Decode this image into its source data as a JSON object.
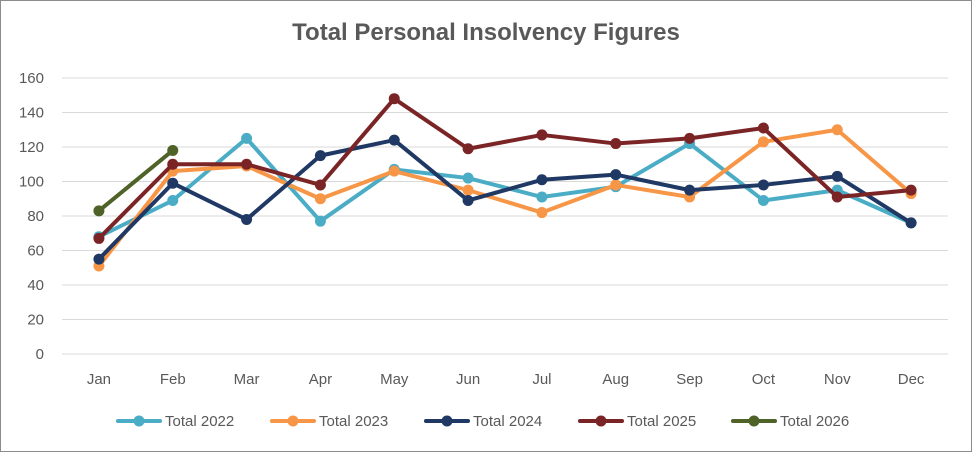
{
  "chart_data": {
    "type": "line",
    "title": "Total Personal Insolvency Figures",
    "xlabel": "",
    "ylabel": "",
    "categories": [
      "Jan",
      "Feb",
      "Mar",
      "Apr",
      "May",
      "Jun",
      "Jul",
      "Aug",
      "Sep",
      "Oct",
      "Nov",
      "Dec"
    ],
    "ylim": [
      0,
      160
    ],
    "yticks": [
      "0",
      "20",
      "40",
      "60",
      "80",
      "100",
      "120",
      "140",
      "160"
    ],
    "grid": true,
    "legend_position": "bottom",
    "series": [
      {
        "name": "Total 2022",
        "color": "#4bacc6",
        "values": [
          68,
          89,
          125,
          77,
          107,
          102,
          91,
          97,
          122,
          89,
          95,
          76
        ]
      },
      {
        "name": "Total 2023",
        "color": "#f79646",
        "values": [
          51,
          106,
          109,
          90,
          106,
          95,
          82,
          98,
          91,
          123,
          130,
          93
        ]
      },
      {
        "name": "Total 2024",
        "color": "#1f3864",
        "values": [
          55,
          99,
          78,
          115,
          124,
          89,
          101,
          104,
          95,
          98,
          103,
          76
        ]
      },
      {
        "name": "Total 2025",
        "color": "#7b2426",
        "values": [
          67,
          110,
          110,
          98,
          148,
          119,
          127,
          122,
          125,
          131,
          91,
          95
        ]
      },
      {
        "name": "Total 2026",
        "color": "#4f6228",
        "values": [
          83,
          118,
          null,
          null,
          null,
          null,
          null,
          null,
          null,
          null,
          null,
          null
        ]
      }
    ]
  }
}
